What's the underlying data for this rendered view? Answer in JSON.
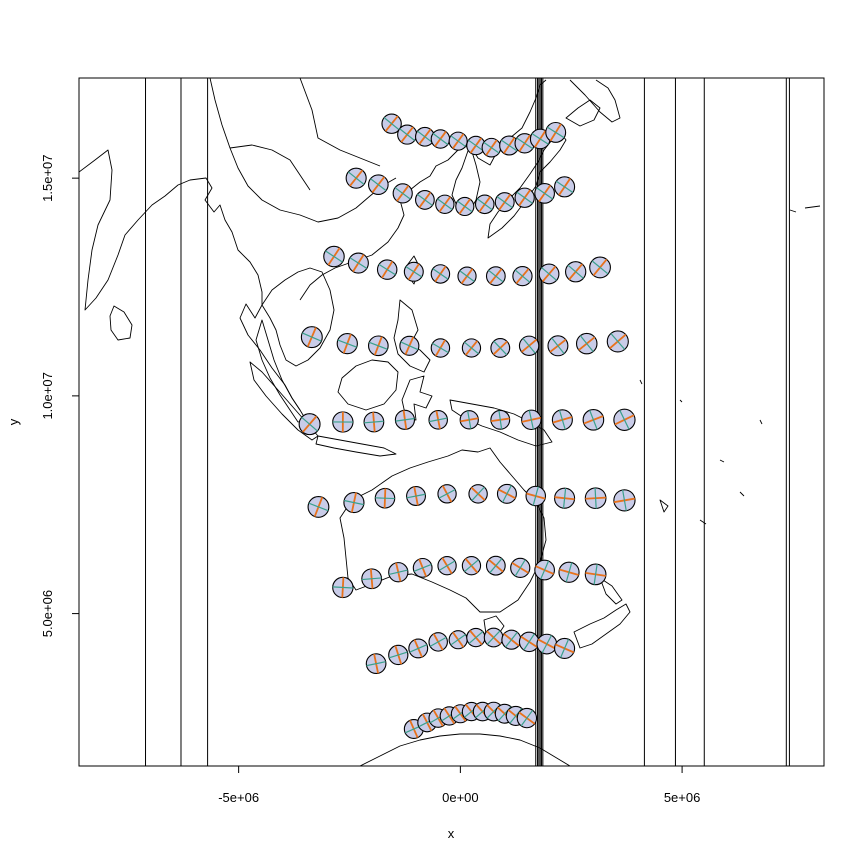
{
  "chart_data": {
    "type": "scatter",
    "title": "",
    "xlabel": "x",
    "ylabel": "y",
    "xlim": [
      -8600000,
      8200000
    ],
    "ylim": [
      1500000,
      17300000
    ],
    "x_ticks": [
      {
        "value": -5000000,
        "label": "-5e+06"
      },
      {
        "value": 0,
        "label": "0e+00"
      },
      {
        "value": 5000000,
        "label": "5e+06"
      }
    ],
    "y_ticks": [
      {
        "value": 5000000,
        "label": "5.0e+06"
      },
      {
        "value": 10000000,
        "label": "1.0e+07"
      },
      {
        "value": 15000000,
        "label": "1.5e+07"
      }
    ],
    "grid": false,
    "legend": "none",
    "vertical_lines_x": [
      -7100000,
      -6300000,
      -5700000,
      1700000,
      1740000,
      1770000,
      1800000,
      1830000,
      1860000,
      4150000,
      4850000,
      5500000,
      7350000,
      7420000
    ],
    "indicatrix_colors": {
      "fill": "#c9cce8",
      "outline": "#000000",
      "major_axis": "#e8721c",
      "minor_axis": "#3aa08c"
    },
    "indicatrix_rows": [
      {
        "y_values": [
          16250000,
          16000000,
          15950000,
          15900000,
          15850000,
          15750000,
          15700000,
          15750000,
          15800000,
          15900000,
          16050000
        ],
        "x_values": [
          -1550000,
          -1200000,
          -800000,
          -450000,
          -50000,
          350000,
          700000,
          1100000,
          1450000,
          1800000,
          2150000
        ]
      },
      {
        "y_values": [
          15000000,
          14850000,
          14650000,
          14500000,
          14400000,
          14350000,
          14400000,
          14450000,
          14550000,
          14650000,
          14800000
        ],
        "x_values": [
          -2350000,
          -1850000,
          -1300000,
          -800000,
          -350000,
          100000,
          550000,
          1000000,
          1450000,
          1900000,
          2350000
        ]
      },
      {
        "y_values": [
          13200000,
          13050000,
          12900000,
          12850000,
          12800000,
          12750000,
          12750000,
          12750000,
          12800000,
          12850000,
          12950000
        ],
        "x_values": [
          -2850000,
          -2300000,
          -1650000,
          -1050000,
          -450000,
          150000,
          800000,
          1400000,
          2000000,
          2600000,
          3150000
        ]
      },
      {
        "y_values": [
          11350000,
          11200000,
          11150000,
          11150000,
          11100000,
          11100000,
          11100000,
          11150000,
          11150000,
          11200000,
          11250000
        ],
        "x_values": [
          -3350000,
          -2550000,
          -1850000,
          -1150000,
          -450000,
          250000,
          900000,
          1550000,
          2200000,
          2850000,
          3550000
        ]
      },
      {
        "y_values": [
          9350000,
          9400000,
          9400000,
          9450000,
          9450000,
          9450000,
          9450000,
          9450000,
          9450000,
          9450000,
          9450000
        ],
        "x_values": [
          -3400000,
          -2650000,
          -1950000,
          -1250000,
          -500000,
          200000,
          900000,
          1600000,
          2300000,
          3000000,
          3700000
        ]
      },
      {
        "y_values": [
          7450000,
          7550000,
          7650000,
          7700000,
          7750000,
          7750000,
          7750000,
          7700000,
          7650000,
          7650000,
          7600000
        ],
        "x_values": [
          -3200000,
          -2400000,
          -1700000,
          -1000000,
          -300000,
          400000,
          1050000,
          1700000,
          2350000,
          3050000,
          3700000
        ]
      },
      {
        "y_values": [
          5600000,
          5800000,
          5950000,
          6050000,
          6100000,
          6100000,
          6100000,
          6050000,
          6000000,
          5950000,
          5900000
        ],
        "x_values": [
          -2650000,
          -2000000,
          -1400000,
          -850000,
          -300000,
          250000,
          800000,
          1350000,
          1900000,
          2450000,
          3050000
        ]
      },
      {
        "y_values": [
          3850000,
          4050000,
          4200000,
          4350000,
          4400000,
          4450000,
          4450000,
          4400000,
          4350000,
          4300000,
          4200000
        ],
        "x_values": [
          -1900000,
          -1400000,
          -950000,
          -500000,
          -50000,
          350000,
          750000,
          1150000,
          1550000,
          1950000,
          2350000
        ]
      },
      {
        "y_values": [
          2350000,
          2500000,
          2600000,
          2650000,
          2700000,
          2750000,
          2750000,
          2750000,
          2700000,
          2650000,
          2600000
        ],
        "x_values": [
          -1050000,
          -750000,
          -500000,
          -250000,
          0,
          250000,
          500000,
          750000,
          1000000,
          1250000,
          1500000
        ]
      }
    ]
  }
}
